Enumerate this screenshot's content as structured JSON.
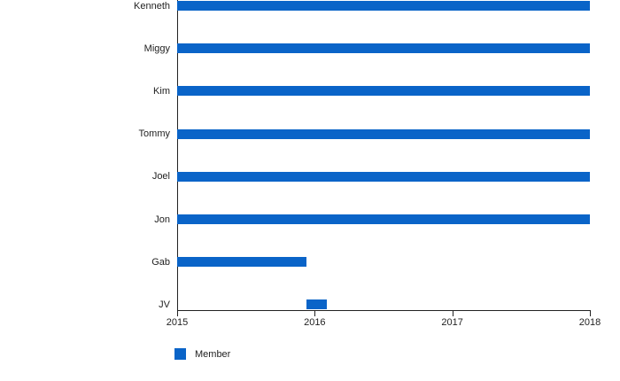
{
  "chart_data": {
    "type": "bar",
    "orientation": "horizontal",
    "title": "",
    "xlabel": "",
    "ylabel": "",
    "categories": [
      "Kenneth",
      "Miggy",
      "Kim",
      "Tommy",
      "Joel",
      "Jon",
      "Gab",
      "JV"
    ],
    "series": [
      {
        "name": "Member",
        "color": "#0a64c8",
        "ranges": [
          [
            2015,
            2018
          ],
          [
            2015,
            2018
          ],
          [
            2015,
            2018
          ],
          [
            2015,
            2018
          ],
          [
            2015,
            2018
          ],
          [
            2015,
            2018
          ],
          [
            2015,
            2015.94
          ],
          [
            2015.94,
            2016.09
          ]
        ]
      }
    ],
    "xlim": [
      2015,
      2018
    ],
    "x_ticks": [
      2015,
      2016,
      2017,
      2018
    ],
    "x_tick_labels": [
      "2015",
      "2016",
      "2017",
      "2018"
    ],
    "grid": "off",
    "axis_color": "#222222",
    "legend": {
      "position": "bottom-left",
      "items": [
        {
          "label": "Member",
          "color": "#0a64c8"
        }
      ]
    }
  }
}
